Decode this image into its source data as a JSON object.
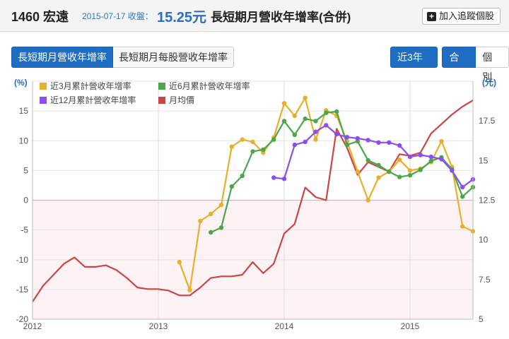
{
  "header": {
    "code_name": "1460 宏遠",
    "date": "2015-07-17",
    "close_label": "收盤：",
    "price": "15.25元",
    "title": "長短期月營收年增率(合併)",
    "follow_button": "加入追蹤個股"
  },
  "tabs": [
    {
      "label": "長短期月營收年增率"
    },
    {
      "label": "長短期月每股營收年增率"
    }
  ],
  "controls": {
    "period": "近3年",
    "merged": "合併",
    "single": "個別"
  },
  "colors": {
    "m3": "#e8b02a",
    "m6": "#4ca64c",
    "m12": "#8a4ef0",
    "price": "#cc4444",
    "accent": "#1f6ec4",
    "negative_band": "#fdf3f5",
    "zero_line": "#f0a8b8"
  },
  "chart_data": {
    "type": "line",
    "left_unit": "(%)",
    "right_unit": "(元)",
    "ylim_left": [
      -20,
      20
    ],
    "yticks_left": [
      -20,
      -15,
      -10,
      -5,
      0,
      5,
      10,
      15
    ],
    "ylim_right": [
      5,
      20
    ],
    "yticks_right": [
      5,
      7.5,
      10,
      12.5,
      15,
      17.5
    ],
    "xlim": [
      "2012-01",
      "2015-07"
    ],
    "xticks": [
      "2012",
      "2013",
      "2014",
      "2015"
    ],
    "grid": true,
    "legend": "top-left",
    "series": [
      {
        "name": "近3月累計營收年增率",
        "axis": "left",
        "markers": true,
        "color_key": "m3",
        "points": [
          [
            "2013-03",
            -10.4
          ],
          [
            "2013-04",
            -15.1
          ],
          [
            "2013-05",
            -3.5
          ],
          [
            "2013-06",
            -2.3
          ],
          [
            "2013-07",
            -0.8
          ],
          [
            "2013-08",
            9.0
          ],
          [
            "2013-09",
            10.2
          ],
          [
            "2013-10",
            9.8
          ],
          [
            "2013-11",
            8.0
          ],
          [
            "2013-12",
            10.5
          ],
          [
            "2014-01",
            16.3
          ],
          [
            "2014-02",
            14.2
          ],
          [
            "2014-03",
            17.2
          ],
          [
            "2014-04",
            10.2
          ],
          [
            "2014-05",
            15.1
          ],
          [
            "2014-06",
            14.2
          ],
          [
            "2014-07",
            9.9
          ],
          [
            "2014-08",
            4.8
          ],
          [
            "2014-09",
            0.0
          ],
          [
            "2014-10",
            3.8
          ],
          [
            "2014-11",
            4.8
          ],
          [
            "2014-12",
            6.8
          ],
          [
            "2015-01",
            5.0
          ],
          [
            "2015-02",
            5.3
          ],
          [
            "2015-03",
            6.4
          ],
          [
            "2015-04",
            9.9
          ],
          [
            "2015-05",
            5.6
          ],
          [
            "2015-06",
            -4.4
          ],
          [
            "2015-07",
            -5.2
          ]
        ]
      },
      {
        "name": "近6月累計營收年增率",
        "axis": "left",
        "markers": true,
        "color_key": "m6",
        "points": [
          [
            "2013-06",
            -5.4
          ],
          [
            "2013-07",
            -4.6
          ],
          [
            "2013-08",
            2.3
          ],
          [
            "2013-09",
            4.1
          ],
          [
            "2013-10",
            8.2
          ],
          [
            "2013-11",
            8.5
          ],
          [
            "2013-12",
            10.2
          ],
          [
            "2014-01",
            13.3
          ],
          [
            "2014-02",
            11.0
          ],
          [
            "2014-03",
            13.7
          ],
          [
            "2014-04",
            13.3
          ],
          [
            "2014-05",
            14.7
          ],
          [
            "2014-06",
            14.9
          ],
          [
            "2014-07",
            9.3
          ],
          [
            "2014-08",
            9.9
          ],
          [
            "2014-09",
            6.7
          ],
          [
            "2014-10",
            5.9
          ],
          [
            "2014-11",
            4.8
          ],
          [
            "2014-12",
            3.9
          ],
          [
            "2015-01",
            4.2
          ],
          [
            "2015-02",
            5.1
          ],
          [
            "2015-03",
            6.6
          ],
          [
            "2015-04",
            7.2
          ],
          [
            "2015-05",
            5.2
          ],
          [
            "2015-06",
            0.6
          ],
          [
            "2015-07",
            2.2
          ]
        ]
      },
      {
        "name": "近12月累計營收年增率",
        "axis": "left",
        "markers": true,
        "color_key": "m12",
        "points": [
          [
            "2013-12",
            3.8
          ],
          [
            "2014-01",
            3.6
          ],
          [
            "2014-02",
            9.3
          ],
          [
            "2014-03",
            9.8
          ],
          [
            "2014-04",
            11.5
          ],
          [
            "2014-05",
            12.6
          ],
          [
            "2014-06",
            11.1
          ],
          [
            "2014-07",
            10.6
          ],
          [
            "2014-08",
            10.4
          ],
          [
            "2014-09",
            10.1
          ],
          [
            "2014-10",
            9.7
          ],
          [
            "2014-11",
            9.7
          ],
          [
            "2014-12",
            9.2
          ],
          [
            "2015-01",
            7.3
          ],
          [
            "2015-02",
            7.6
          ],
          [
            "2015-03",
            7.3
          ],
          [
            "2015-04",
            6.9
          ],
          [
            "2015-05",
            5.0
          ],
          [
            "2015-06",
            2.2
          ],
          [
            "2015-07",
            3.5
          ]
        ]
      },
      {
        "name": "月均價",
        "axis": "right",
        "markers": false,
        "color_key": "price",
        "points": [
          [
            "2012-01",
            6.1
          ],
          [
            "2012-02",
            7.1
          ],
          [
            "2012-03",
            7.8
          ],
          [
            "2012-04",
            8.5
          ],
          [
            "2012-05",
            8.9
          ],
          [
            "2012-06",
            8.3
          ],
          [
            "2012-07",
            8.3
          ],
          [
            "2012-08",
            8.4
          ],
          [
            "2012-09",
            8.1
          ],
          [
            "2012-10",
            7.6
          ],
          [
            "2012-11",
            7.0
          ],
          [
            "2012-12",
            6.9
          ],
          [
            "2013-01",
            6.9
          ],
          [
            "2013-02",
            6.8
          ],
          [
            "2013-03",
            6.5
          ],
          [
            "2013-04",
            6.5
          ],
          [
            "2013-05",
            7.0
          ],
          [
            "2013-06",
            7.6
          ],
          [
            "2013-07",
            7.7
          ],
          [
            "2013-08",
            7.7
          ],
          [
            "2013-09",
            7.8
          ],
          [
            "2013-10",
            8.6
          ],
          [
            "2013-11",
            7.9
          ],
          [
            "2013-12",
            8.5
          ],
          [
            "2014-01",
            10.4
          ],
          [
            "2014-02",
            11.0
          ],
          [
            "2014-03",
            13.3
          ],
          [
            "2014-04",
            12.7
          ],
          [
            "2014-05",
            12.5
          ],
          [
            "2014-06",
            17.0
          ],
          [
            "2014-07",
            15.8
          ],
          [
            "2014-08",
            14.1
          ],
          [
            "2014-09",
            14.9
          ],
          [
            "2014-10",
            14.6
          ],
          [
            "2014-11",
            14.3
          ],
          [
            "2014-12",
            15.4
          ],
          [
            "2015-01",
            15.3
          ],
          [
            "2015-02",
            15.5
          ],
          [
            "2015-03",
            16.7
          ],
          [
            "2015-04",
            17.3
          ],
          [
            "2015-05",
            17.9
          ],
          [
            "2015-06",
            18.4
          ],
          [
            "2015-07",
            18.8
          ]
        ]
      }
    ]
  }
}
